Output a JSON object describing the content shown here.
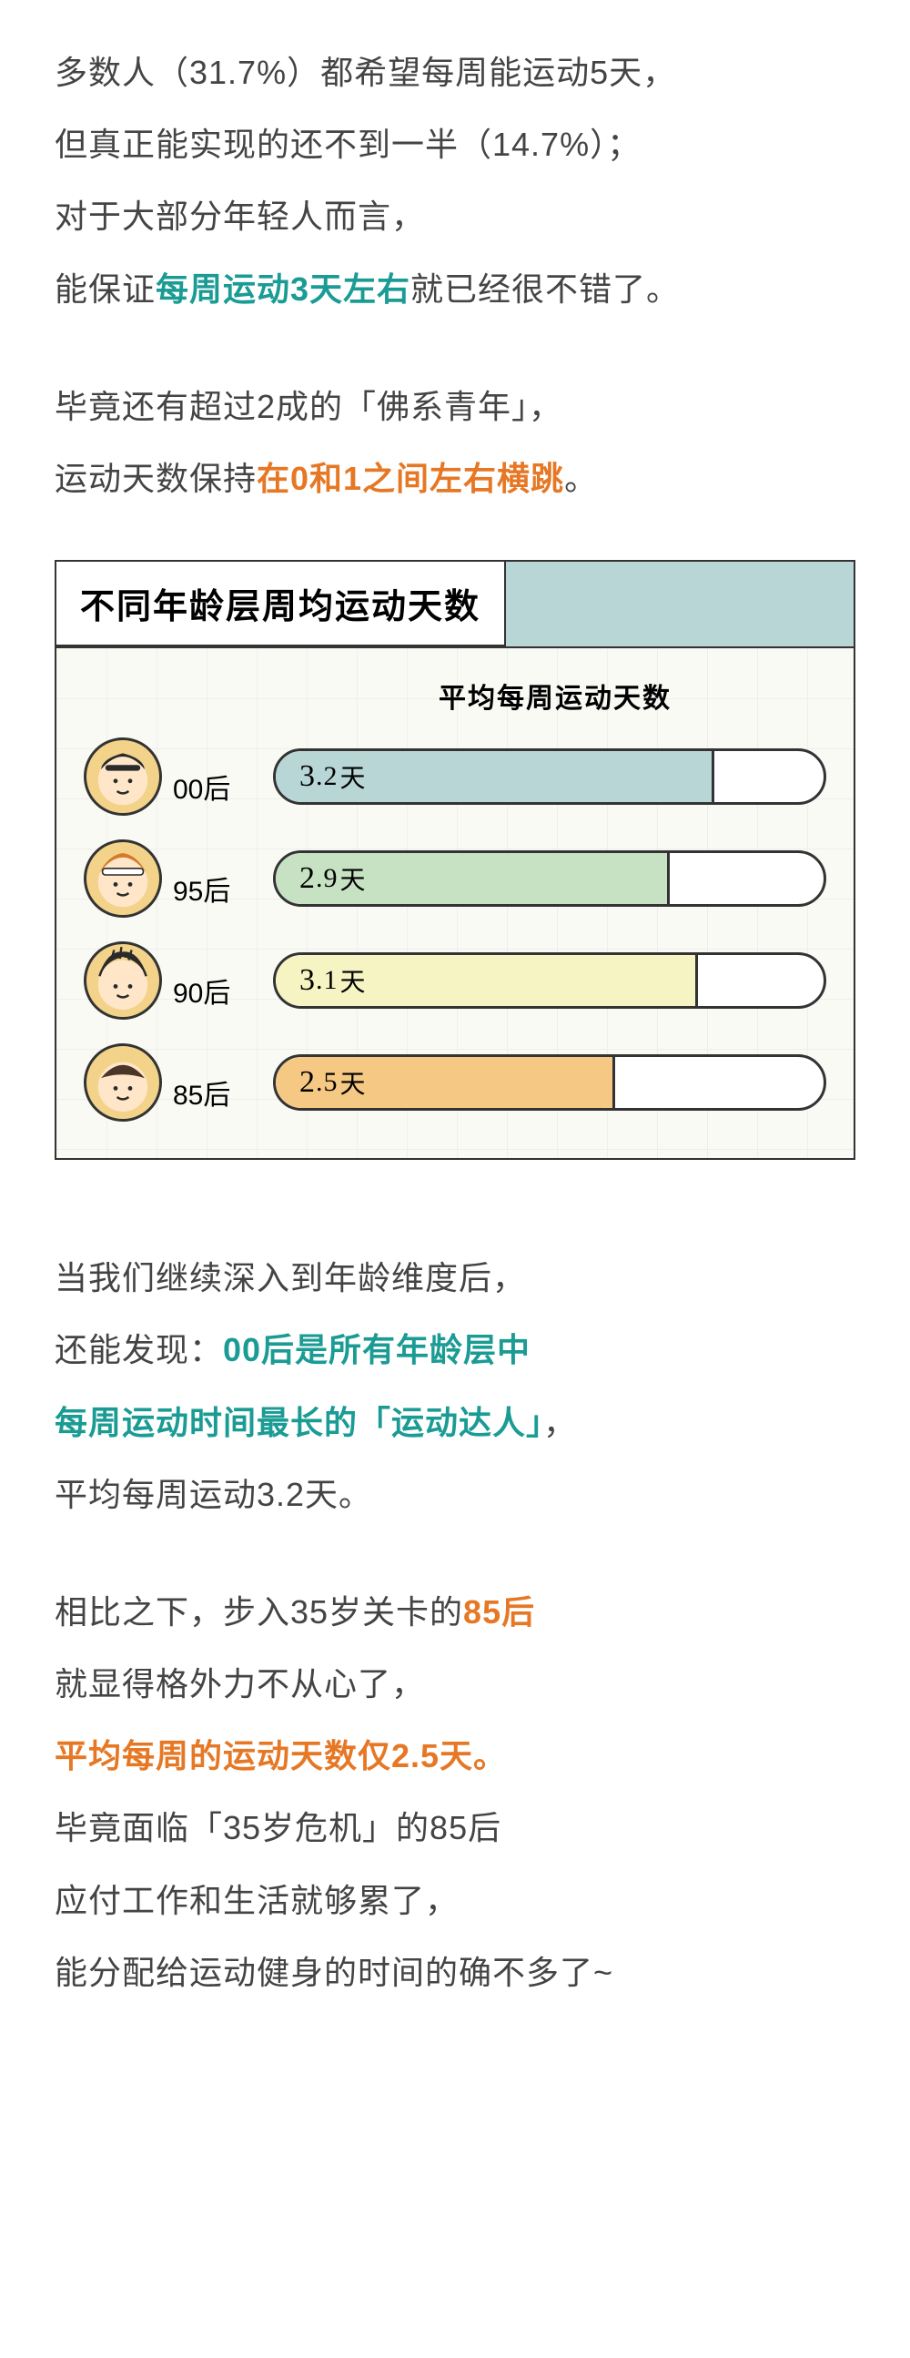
{
  "para1": {
    "t1": "多数人（31.7%）都希望每周能运动5天，",
    "t2": "但真正能实现的还不到一半（14.7%）；",
    "t3": "对于大部分年轻人而言，",
    "t4a": "能保证",
    "t4b": "每周运动3天左右",
    "t4c": "就已经很不错了。"
  },
  "para2": {
    "t1": "毕竟还有超过2成的「佛系青年」，",
    "t2a": "运动天数保持",
    "t2b": "在0和1之间左右横跳",
    "t2c": "。"
  },
  "chart": {
    "title": "不同年龄层周均运动天数",
    "caption": "平均每周运动天数",
    "max_days": 4.0,
    "bar_border": "#333333",
    "background": "#fafaf5",
    "header_bg": "#b8d6d6",
    "rows": [
      {
        "cohort": "00后",
        "value_int": "3",
        "value_dec": ".2",
        "unit": "天",
        "pct": 80,
        "fill": "#b8d6d6"
      },
      {
        "cohort": "95后",
        "value_int": "2",
        "value_dec": ".9",
        "unit": "天",
        "pct": 72,
        "fill": "#c7e2c3"
      },
      {
        "cohort": "90后",
        "value_int": "3",
        "value_dec": ".1",
        "unit": "天",
        "pct": 77,
        "fill": "#f6f4c2"
      },
      {
        "cohort": "85后",
        "value_int": "2",
        "value_dec": ".5",
        "unit": "天",
        "pct": 62,
        "fill": "#f5c883"
      }
    ],
    "avatar_ring": "#f3d38a"
  },
  "para3": {
    "t1": "当我们继续深入到年龄维度后，",
    "t2a": "还能发现：",
    "t2b": "00后是所有年龄层中",
    "t3": "每周运动时间最长的「运动达人」",
    "t3c": "，",
    "t4": "平均每周运动3.2天。"
  },
  "para4": {
    "t1a": "相比之下，步入35岁关卡的",
    "t1b": "85后",
    "t2": "就显得格外力不从心了，",
    "t3": "平均每周的运动天数仅2.5天。",
    "t4": "毕竟面临「35岁危机」的85后",
    "t5": "应付工作和生活就够累了，",
    "t6": "能分配给运动健身的时间的确不多了~"
  },
  "colors": {
    "teal": "#1a9b94",
    "orange": "#e67825",
    "text": "#444444"
  }
}
